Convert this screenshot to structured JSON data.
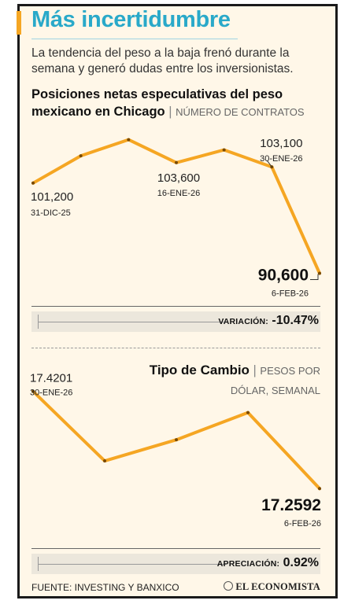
{
  "header": {
    "title": "Más incertidumbre",
    "subtitle": "La tendencia del peso a la baja frenó durante la semana y generó dudas entre los inversionistas."
  },
  "chart1": {
    "title_bold": "Posiciones netas especulativas del peso mexicano en Chicago",
    "unit": "NÚMERO DE CONTRATOS",
    "variation_label": "VARIACIÓN:",
    "variation_value": "-10.47%"
  },
  "chart2": {
    "title_bold": "Tipo de Cambio",
    "unit": "PESOS POR DÓLAR, SEMANAL",
    "variation_label": "APRECIACIÓN:",
    "variation_value": "0.92%"
  },
  "footer": {
    "source": "FUENTE: INVESTING Y BANXICO",
    "logo": "EL ECONOMISTA"
  },
  "colors": {
    "line": "#f5a623",
    "title": "#29a9c9",
    "background": "#fff7e8"
  },
  "chart_data": [
    {
      "type": "line",
      "x": [
        "31-DIC-25",
        "",
        "",
        "16-ENE-26",
        "",
        "30-ENE-26",
        "6-FEB-26"
      ],
      "values": [
        101200,
        104400,
        106300,
        103600,
        105100,
        103100,
        90600
      ],
      "labels": [
        {
          "text": "101,200",
          "date": "31-DIC-25",
          "index": 0
        },
        {
          "text": "103,600",
          "date": "16-ENE-26",
          "index": 3
        },
        {
          "text": "103,100",
          "date": "30-ENE-26",
          "index": 5
        },
        {
          "text": "90,600",
          "date": "6-FEB-26",
          "index": 6
        }
      ],
      "ylim": [
        90000,
        107000
      ]
    },
    {
      "type": "line",
      "x": [
        "30-ENE-26",
        "",
        "",
        "",
        "6-FEB-26"
      ],
      "values": [
        17.4201,
        17.305,
        17.34,
        17.385,
        17.2592
      ],
      "labels": [
        {
          "text": "17.4201",
          "date": "30-ENE-26",
          "index": 0
        },
        {
          "text": "17.2592",
          "date": "6-FEB-26",
          "index": 4
        }
      ],
      "ylim": [
        17.24,
        17.43
      ]
    }
  ]
}
